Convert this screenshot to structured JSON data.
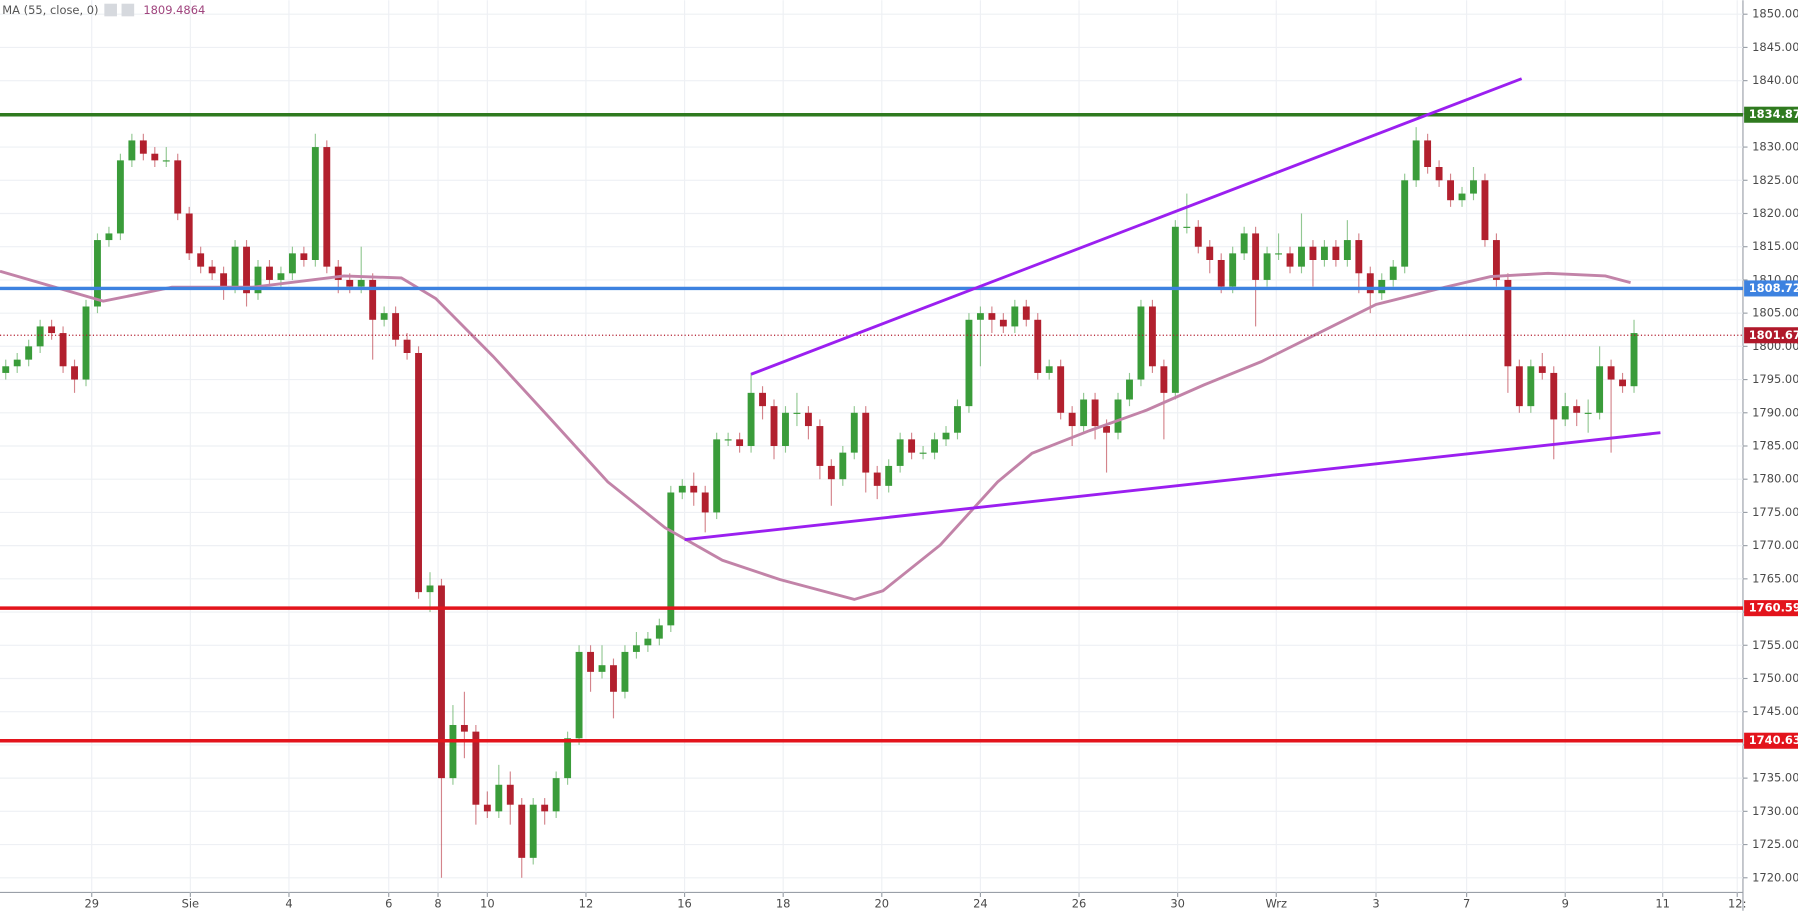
{
  "chart_data": {
    "type": "candlestick",
    "indicator": {
      "label": "MA (55, close, 0)",
      "value": 1809.4864,
      "color": "#c283a8"
    },
    "up_color": "#3a9c3a",
    "down_color": "#b2202e",
    "ylim": [
      1717.8,
      1852.1
    ],
    "yticks": [
      {
        "value": 1720,
        "label": "1720.00"
      },
      {
        "value": 1725,
        "label": "1725.00"
      },
      {
        "value": 1730,
        "label": "1730.00"
      },
      {
        "value": 1735,
        "label": "1735.00"
      },
      {
        "value": 1740,
        "label": "1740.00"
      },
      {
        "value": 1745,
        "label": "1745.00"
      },
      {
        "value": 1750,
        "label": "1750.00"
      },
      {
        "value": 1755,
        "label": "1755.00"
      },
      {
        "value": 1760,
        "label": "1760.00"
      },
      {
        "value": 1765,
        "label": "1765.00"
      },
      {
        "value": 1770,
        "label": "1770.00"
      },
      {
        "value": 1775,
        "label": "1775.00"
      },
      {
        "value": 1780,
        "label": "1780.00"
      },
      {
        "value": 1785,
        "label": "1785.00"
      },
      {
        "value": 1790,
        "label": "1790.00"
      },
      {
        "value": 1795,
        "label": "1795.00"
      },
      {
        "value": 1800,
        "label": "1800.00"
      },
      {
        "value": 1805,
        "label": "1805.00"
      },
      {
        "value": 1810,
        "label": "1810.00"
      },
      {
        "value": 1815,
        "label": "1815.00"
      },
      {
        "value": 1820,
        "label": "1820.00"
      },
      {
        "value": 1825,
        "label": "1825.00"
      },
      {
        "value": 1830,
        "label": "1830.00"
      },
      {
        "value": 1835,
        "label": "1835.00"
      },
      {
        "value": 1840,
        "label": "1840.00"
      },
      {
        "value": 1845,
        "label": "1845.00"
      },
      {
        "value": 1850,
        "label": "1850.00"
      }
    ],
    "xlim": [
      -0.5,
      151.5
    ],
    "xticks": [
      {
        "value": 7.5,
        "label": "29"
      },
      {
        "value": 16.1,
        "label": "Sie"
      },
      {
        "value": 24.7,
        "label": "4"
      },
      {
        "value": 33.4,
        "label": "6"
      },
      {
        "value": 37.7,
        "label": "8"
      },
      {
        "value": 42,
        "label": "10"
      },
      {
        "value": 50.6,
        "label": "12"
      },
      {
        "value": 59.2,
        "label": "16"
      },
      {
        "value": 67.8,
        "label": "18"
      },
      {
        "value": 76.4,
        "label": "20"
      },
      {
        "value": 85,
        "label": "24"
      },
      {
        "value": 93.6,
        "label": "26"
      },
      {
        "value": 102.2,
        "label": "30"
      },
      {
        "value": 110.8,
        "label": "Wrz"
      },
      {
        "value": 119.5,
        "label": "3"
      },
      {
        "value": 127.4,
        "label": "7"
      },
      {
        "value": 136,
        "label": "9"
      },
      {
        "value": 144.5,
        "label": "11"
      },
      {
        "value": 151,
        "label": "12:"
      }
    ],
    "open": [
      1796,
      1797,
      1798,
      1800,
      1803,
      1802,
      1797,
      1795,
      1806,
      1816,
      1817,
      1828,
      1831,
      1829,
      1828,
      1828,
      1820,
      1814,
      1812,
      1811,
      1809,
      1815,
      1808,
      1812,
      1810,
      1811,
      1814,
      1813,
      1830,
      1812,
      1810,
      1809,
      1810,
      1804,
      1805,
      1801,
      1799,
      1763,
      1764,
      1735,
      1743,
      1742,
      1731,
      1730,
      1734,
      1731,
      1723,
      1731,
      1730,
      1735,
      1741,
      1754,
      1751,
      1752,
      1748,
      1754,
      1755,
      1756,
      1758,
      1778,
      1779,
      1778,
      1775,
      1786,
      1786,
      1785,
      1793,
      1791,
      1785,
      1790,
      1790,
      1788,
      1782,
      1780,
      1784,
      1790,
      1781,
      1779,
      1782,
      1786,
      1784,
      1784,
      1786,
      1787,
      1791,
      1804,
      1805,
      1804,
      1803,
      1806,
      1804,
      1796,
      1797,
      1790,
      1788,
      1792,
      1788,
      1787,
      1792,
      1795,
      1806,
      1797,
      1793,
      1818,
      1818,
      1815,
      1813,
      1809,
      1814,
      1817,
      1810,
      1814,
      1814,
      1812,
      1815,
      1813,
      1815,
      1813,
      1816,
      1811,
      1808,
      1810,
      1812,
      1825,
      1831,
      1827,
      1825,
      1822,
      1823,
      1825,
      1816,
      1810,
      1797,
      1791,
      1797,
      1796,
      1789,
      1791,
      1790,
      1790,
      1797,
      1795,
      1794
    ],
    "high": [
      1798,
      1799,
      1801,
      1804,
      1804,
      1803,
      1798,
      1807,
      1817,
      1818,
      1829,
      1832,
      1832,
      1830,
      1830,
      1829,
      1821,
      1815,
      1813,
      1812,
      1816,
      1816,
      1813,
      1813,
      1812,
      1815,
      1815,
      1832,
      1831,
      1813,
      1811,
      1815,
      1811,
      1806,
      1806,
      1802,
      1800,
      1766,
      1765,
      1746,
      1748,
      1743,
      1733,
      1737,
      1736,
      1732,
      1732,
      1732,
      1736,
      1742,
      1755,
      1755,
      1755,
      1753,
      1755,
      1757,
      1757,
      1759,
      1779,
      1780,
      1781,
      1779,
      1787,
      1787,
      1787,
      1796,
      1794,
      1792,
      1791,
      1793,
      1791,
      1789,
      1783,
      1785,
      1791,
      1791,
      1782,
      1783,
      1787,
      1787,
      1785,
      1787,
      1788,
      1792,
      1805,
      1806,
      1806,
      1805,
      1807,
      1807,
      1805,
      1798,
      1798,
      1791,
      1793,
      1793,
      1789,
      1793,
      1796,
      1807,
      1807,
      1798,
      1819,
      1823,
      1819,
      1816,
      1814,
      1815,
      1818,
      1818,
      1815,
      1817,
      1815,
      1820,
      1816,
      1816,
      1816,
      1819,
      1817,
      1812,
      1811,
      1813,
      1826,
      1833,
      1832,
      1828,
      1826,
      1824,
      1827,
      1826,
      1817,
      1811,
      1798,
      1798,
      1799,
      1797,
      1793,
      1792,
      1792,
      1800,
      1798,
      1796,
      1804
    ],
    "low": [
      1795,
      1796,
      1797,
      1799,
      1801,
      1796,
      1793,
      1794,
      1805,
      1815,
      1816,
      1827,
      1828,
      1827,
      1827,
      1819,
      1813,
      1811,
      1810,
      1807,
      1808,
      1806,
      1807,
      1809,
      1809,
      1810,
      1812,
      1812,
      1811,
      1808,
      1808,
      1808,
      1798,
      1803,
      1800,
      1798,
      1762,
      1760,
      1720,
      1734,
      1738,
      1728,
      1729,
      1729,
      1728,
      1720,
      1722,
      1728,
      1729,
      1734,
      1740,
      1748,
      1750,
      1744,
      1747,
      1753,
      1754,
      1755,
      1757,
      1777,
      1776,
      1772,
      1774,
      1785,
      1784,
      1784,
      1789,
      1783,
      1784,
      1788,
      1786,
      1780,
      1776,
      1779,
      1783,
      1778,
      1777,
      1778,
      1781,
      1783,
      1783,
      1783,
      1785,
      1786,
      1790,
      1797,
      1802,
      1802,
      1802,
      1803,
      1795,
      1795,
      1789,
      1785,
      1787,
      1786,
      1781,
      1786,
      1791,
      1794,
      1796,
      1786,
      1792,
      1817,
      1814,
      1811,
      1808,
      1808,
      1813,
      1803,
      1809,
      1813,
      1811,
      1811,
      1809,
      1812,
      1812,
      1812,
      1808,
      1805,
      1807,
      1809,
      1811,
      1824,
      1826,
      1824,
      1821,
      1821,
      1822,
      1815,
      1809,
      1793,
      1790,
      1790,
      1795,
      1783,
      1788,
      1788,
      1787,
      1789,
      1784,
      1793,
      1793
    ],
    "close": [
      1797,
      1798,
      1800,
      1803,
      1802,
      1797,
      1795,
      1806,
      1816,
      1817,
      1828,
      1831,
      1829,
      1828,
      1828,
      1820,
      1814,
      1812,
      1811,
      1809,
      1815,
      1808,
      1812,
      1810,
      1811,
      1814,
      1813,
      1830,
      1812,
      1810,
      1809,
      1810,
      1804,
      1805,
      1801,
      1799,
      1763,
      1764,
      1735,
      1743,
      1742,
      1731,
      1730,
      1734,
      1731,
      1723,
      1731,
      1730,
      1735,
      1741,
      1754,
      1751,
      1752,
      1748,
      1754,
      1755,
      1756,
      1758,
      1778,
      1779,
      1778,
      1775,
      1786,
      1786,
      1785,
      1793,
      1791,
      1785,
      1790,
      1790,
      1788,
      1782,
      1780,
      1784,
      1790,
      1781,
      1779,
      1782,
      1786,
      1784,
      1784,
      1786,
      1787,
      1791,
      1804,
      1805,
      1804,
      1803,
      1806,
      1804,
      1796,
      1797,
      1790,
      1788,
      1792,
      1788,
      1787,
      1792,
      1795,
      1806,
      1797,
      1793,
      1818,
      1818,
      1815,
      1813,
      1809,
      1814,
      1817,
      1810,
      1814,
      1814,
      1812,
      1815,
      1813,
      1815,
      1813,
      1816,
      1811,
      1808,
      1810,
      1812,
      1825,
      1831,
      1827,
      1825,
      1822,
      1823,
      1825,
      1816,
      1810,
      1797,
      1791,
      1797,
      1796,
      1789,
      1791,
      1790,
      1790,
      1797,
      1795,
      1794,
      1802
    ],
    "ma": {
      "x": [
        -0.5,
        8.5,
        14.5,
        21.5,
        29.5,
        34.5,
        37.5,
        42.5,
        47.5,
        52.5,
        57.5,
        62.5,
        67.5,
        74,
        76.5,
        81.5,
        86.5,
        89.5,
        94.5,
        99.5,
        104.5,
        109.5,
        114.5,
        119.5,
        125.5,
        129.5,
        134.5,
        139.5,
        141.7
      ],
      "values": [
        1811.3,
        1806.8,
        1808.9,
        1808.9,
        1810.6,
        1810.3,
        1807.2,
        1798.5,
        1789.1,
        1779.6,
        1772.7,
        1767.8,
        1764.9,
        1761.9,
        1763.2,
        1770.1,
        1779.6,
        1783.9,
        1787.3,
        1790.4,
        1794.2,
        1797.7,
        1802,
        1806.3,
        1808.9,
        1810.5,
        1811,
        1810.6,
        1809.6
      ]
    },
    "trendlines": [
      {
        "x": [
          65,
          132.2
        ],
        "y": [
          1795.8,
          1840.3
        ],
        "color": "#9b1ff0"
      },
      {
        "x": [
          59.2,
          144.3
        ],
        "y": [
          1770.9,
          1787.0
        ],
        "color": "#9b1ff0"
      }
    ],
    "levels": [
      {
        "value": 1834.87,
        "color": "#2f7a1f"
      },
      {
        "value": 1808.72,
        "color": "#3d82e0"
      },
      {
        "value": 1760.59,
        "color": "#e3141c"
      },
      {
        "value": 1740.63,
        "color": "#e3141c"
      }
    ],
    "last_price": {
      "value": 1801.67,
      "color": "#b0182a"
    }
  }
}
